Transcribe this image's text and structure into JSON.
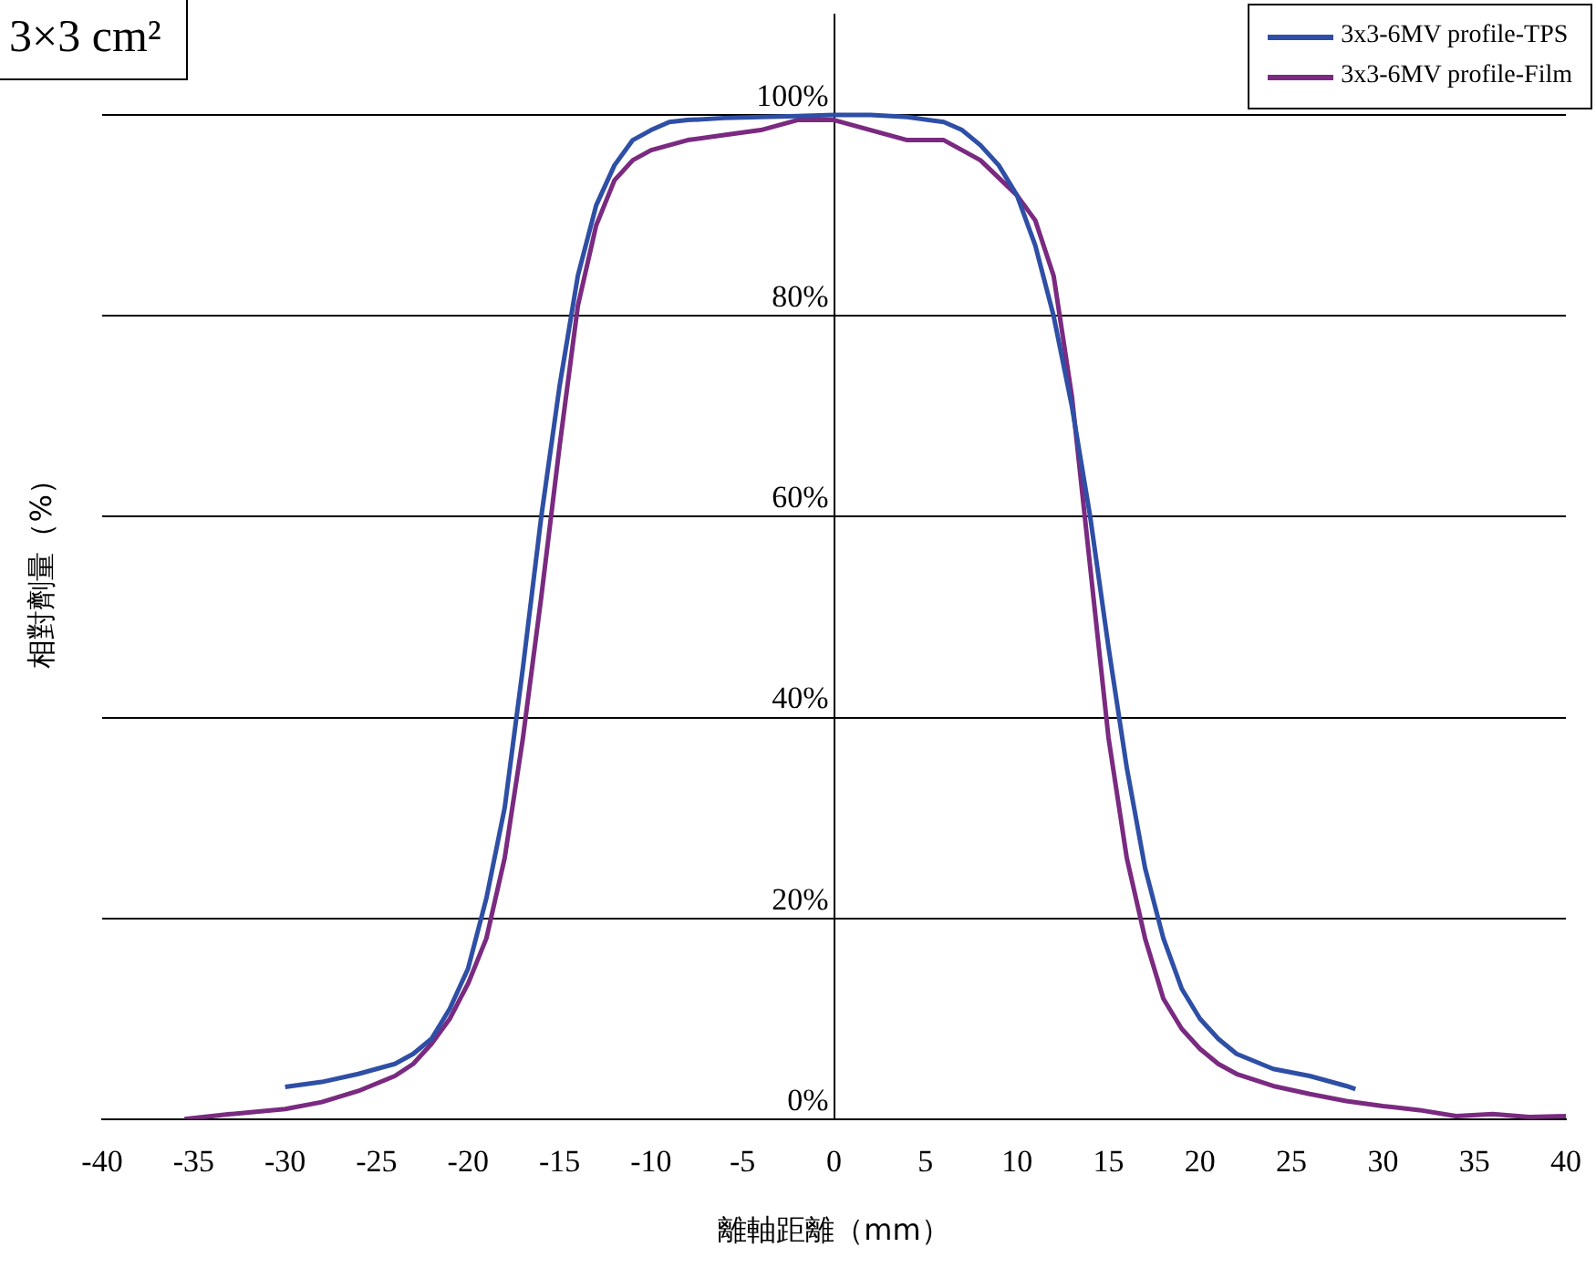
{
  "chart_data": {
    "type": "line",
    "title": "3×3 cm²",
    "xlabel": "離軸距離（mm）",
    "ylabel": "相對劑量（%）",
    "xlim": [
      -40,
      40
    ],
    "xticks": [
      -40,
      -35,
      -30,
      -25,
      -20,
      -15,
      -10,
      -5,
      0,
      5,
      10,
      15,
      20,
      25,
      30,
      35,
      40
    ],
    "ylim": [
      0,
      110
    ],
    "yticks": [
      {
        "value": 0,
        "label": "0%"
      },
      {
        "value": 20,
        "label": "20%"
      },
      {
        "value": 40,
        "label": "40%"
      },
      {
        "value": 60,
        "label": "60%"
      },
      {
        "value": 80,
        "label": "80%"
      },
      {
        "value": 100,
        "label": "100%"
      }
    ],
    "grid": "y",
    "legend": "top right",
    "marker": "none",
    "line_style": "solid",
    "series": [
      {
        "name": "3x3-6MV profile-TPS",
        "color": "#2e4fa5",
        "x": [
          -30,
          -28,
          -26,
          -24,
          -23,
          -22,
          -21,
          -20,
          -19,
          -18,
          -17,
          -16,
          -15,
          -14,
          -13,
          -12,
          -11,
          -10,
          -9,
          -8,
          -6,
          -4,
          -2,
          0,
          2,
          4,
          6,
          7,
          8,
          9,
          10,
          11,
          12,
          13,
          14,
          15,
          16,
          17,
          18,
          19,
          20,
          21,
          22,
          24,
          26,
          28,
          28.5
        ],
        "values": [
          3.2,
          3.7,
          4.5,
          5.5,
          6.5,
          8,
          11,
          15,
          22,
          31,
          45,
          60,
          73,
          84,
          91,
          95,
          97.5,
          98.5,
          99.3,
          99.5,
          99.7,
          99.8,
          99.9,
          100,
          100,
          99.8,
          99.3,
          98.5,
          97,
          95,
          92,
          87,
          80,
          71,
          60,
          47,
          35,
          25,
          18,
          13,
          10,
          8,
          6.5,
          5,
          4.3,
          3.3,
          3
        ]
      },
      {
        "name": "3x3-6MV profile-Film",
        "color": "#7a2a80",
        "x": [
          -35.5,
          -33,
          -30,
          -28,
          -26,
          -24,
          -23,
          -22,
          -21,
          -20,
          -19,
          -18,
          -17,
          -16,
          -15,
          -14,
          -13,
          -12,
          -11,
          -10,
          -8,
          -6,
          -4,
          -2,
          0,
          2,
          4,
          6,
          8,
          10,
          11,
          12,
          13,
          14,
          15,
          16,
          17,
          18,
          19,
          20,
          21,
          22,
          24,
          26,
          28,
          30,
          32,
          34,
          36,
          38,
          40
        ],
        "values": [
          0,
          0.5,
          1,
          1.7,
          2.8,
          4.3,
          5.5,
          7.5,
          10,
          13.5,
          18,
          26,
          38,
          52,
          67,
          81,
          89,
          93.5,
          95.5,
          96.5,
          97.5,
          98,
          98.5,
          99.5,
          99.5,
          98.5,
          97.5,
          97.5,
          95.5,
          92,
          89.5,
          84,
          72,
          55,
          38,
          26,
          18,
          12,
          9,
          7,
          5.5,
          4.5,
          3.3,
          2.5,
          1.8,
          1.3,
          0.9,
          0.3,
          0.5,
          0.2,
          0.3
        ]
      }
    ]
  }
}
